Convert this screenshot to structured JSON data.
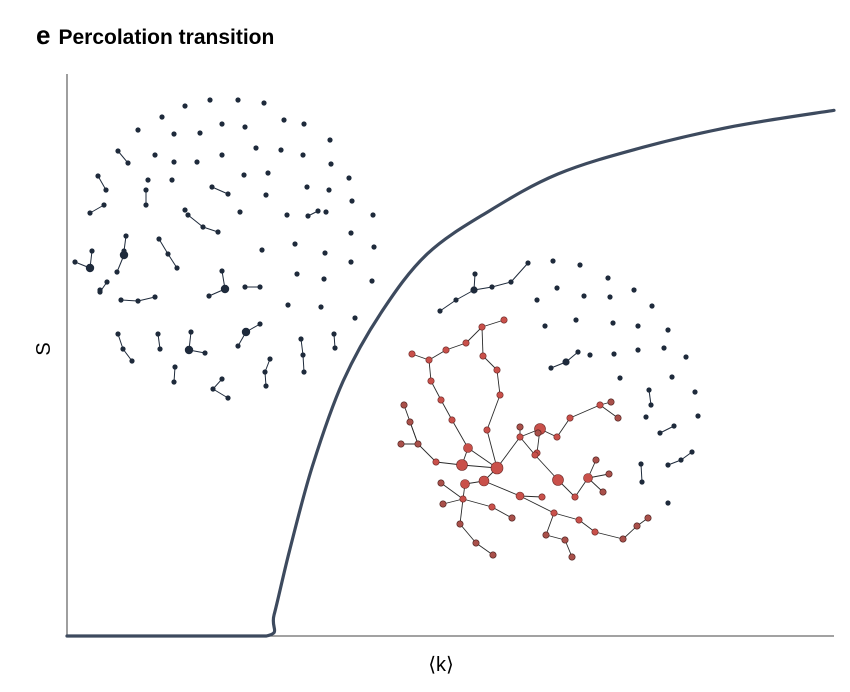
{
  "panel": {
    "letter": "e",
    "title": "Percolation transition"
  },
  "axes": {
    "ylabel": "S",
    "xlabel": "⟨k⟩"
  },
  "colors": {
    "curve": "#3d4a5e",
    "isolated_nodes": "#1e2a3b",
    "giant_component": "#c9504a",
    "axis": "#6b6b6b"
  },
  "chart_data": {
    "type": "line",
    "title": "Percolation transition",
    "xlabel": "⟨k⟩",
    "ylabel": "S",
    "grid": false,
    "legend": "none",
    "description_of_curve": "S stays at 0 below the critical point, then rises steeply and saturates",
    "series": [
      {
        "x": [
          0,
          0.15,
          0.26,
          0.27,
          0.29,
          0.32,
          0.36,
          0.41,
          0.47,
          0.55,
          0.64,
          0.75,
          0.87,
          1.0
        ],
        "values": [
          0,
          0,
          0,
          0.04,
          0.16,
          0.32,
          0.48,
          0.61,
          0.72,
          0.8,
          0.87,
          0.92,
          0.96,
          0.99
        ]
      }
    ]
  }
}
